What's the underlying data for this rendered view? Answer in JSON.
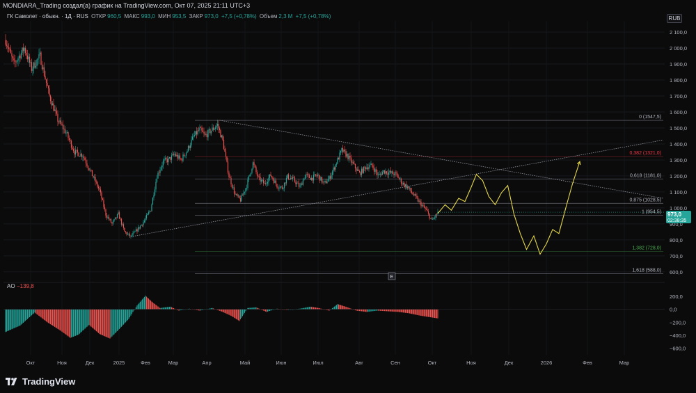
{
  "header": {
    "title": "MONDIARA_Trading создал(а) график на TradingView.com, Окт 07, 2025 21:11 UTC+3"
  },
  "legend": {
    "symbol": "ГК Самолет · обыкн. · 1Д · RUS",
    "open_label": "ОТКР",
    "open": "960,5",
    "high_label": "МАКС",
    "high": "993,0",
    "low_label": "МИН",
    "low": "953,5",
    "close_label": "ЗАКР",
    "close": "973,0",
    "change": "+7,5 (+0,78%)",
    "volume_label": "Объем",
    "volume": "2,3 M",
    "volume_change": "+7,5 (+0,78%)"
  },
  "currency_button": "RUB",
  "price_badge": {
    "price": "973,0",
    "timer": "02:38:35"
  },
  "event_marker": "E",
  "ao": {
    "label": "AO",
    "value": "−139,8"
  },
  "footer": {
    "brand": "TradingView"
  },
  "colors": {
    "background": "#0b0b0c",
    "up": "#26a69a",
    "down": "#ef5350",
    "projection": "#e6d84a",
    "fib_red": "#f23645",
    "fib_green": "#4caf50",
    "trendline": "#9598a1"
  },
  "chart_data": [
    {
      "type": "candlestick",
      "symbol": "ГК Самолет",
      "ylim": [
        560,
        2170
      ],
      "y_ticks": [
        "2 100,0",
        "2 000,0",
        "1 900,0",
        "1 800,0",
        "1 700,0",
        "1 600,0",
        "1 500,0",
        "1 400,0",
        "1 300,0",
        "1 200,0",
        "1 100,0",
        "1 000,0",
        "900,0",
        "800,0",
        "700,0",
        "600,0"
      ],
      "x_ticks": [
        "Окт",
        "Ноя",
        "Дек",
        "2025",
        "Фев",
        "Мар",
        "Апр",
        "Май",
        "Июн",
        "Июл",
        "Авг",
        "Сен",
        "Окт",
        "Ноя",
        "Дек",
        "2026",
        "Фев",
        "Мар"
      ],
      "anchors": [
        [
          0,
          2050
        ],
        [
          8,
          1900
        ],
        [
          18,
          2000
        ],
        [
          25,
          1870
        ],
        [
          33,
          1950
        ],
        [
          42,
          1700
        ],
        [
          50,
          1550
        ],
        [
          58,
          1470
        ],
        [
          66,
          1350
        ],
        [
          74,
          1330
        ],
        [
          82,
          1220
        ],
        [
          90,
          1110
        ],
        [
          96,
          960
        ],
        [
          102,
          900
        ],
        [
          108,
          960
        ],
        [
          114,
          850
        ],
        [
          120,
          820
        ],
        [
          127,
          870
        ],
        [
          133,
          920
        ],
        [
          139,
          990
        ],
        [
          145,
          1200
        ],
        [
          151,
          1290
        ],
        [
          156,
          1300
        ],
        [
          162,
          1335
        ],
        [
          168,
          1300
        ],
        [
          174,
          1360
        ],
        [
          180,
          1445
        ],
        [
          186,
          1490
        ],
        [
          191,
          1450
        ],
        [
          197,
          1485
        ],
        [
          203,
          1520
        ],
        [
          208,
          1420
        ],
        [
          214,
          1200
        ],
        [
          220,
          1080
        ],
        [
          225,
          1050
        ],
        [
          231,
          1140
        ],
        [
          237,
          1280
        ],
        [
          242,
          1185
        ],
        [
          248,
          1150
        ],
        [
          254,
          1205
        ],
        [
          260,
          1140
        ],
        [
          265,
          1125
        ],
        [
          270,
          1195
        ],
        [
          276,
          1175
        ],
        [
          282,
          1130
        ],
        [
          287,
          1205
        ],
        [
          293,
          1185
        ],
        [
          299,
          1205
        ],
        [
          305,
          1150
        ],
        [
          310,
          1185
        ],
        [
          316,
          1270
        ],
        [
          322,
          1360
        ],
        [
          327,
          1330
        ],
        [
          333,
          1270
        ],
        [
          339,
          1215
        ],
        [
          345,
          1255
        ],
        [
          351,
          1265
        ],
        [
          357,
          1200
        ],
        [
          362,
          1230
        ],
        [
          368,
          1220
        ],
        [
          374,
          1210
        ],
        [
          380,
          1155
        ],
        [
          385,
          1130
        ],
        [
          391,
          1080
        ],
        [
          397,
          1030
        ],
        [
          403,
          985
        ],
        [
          408,
          920
        ],
        [
          414,
          965
        ]
      ],
      "last": {
        "open": 960.5,
        "high": 993.0,
        "low": 953.5,
        "close": 973.0
      }
    },
    {
      "type": "line",
      "name": "projection",
      "points": [
        [
          414,
          965
        ],
        [
          421,
          1020
        ],
        [
          427,
          985
        ],
        [
          434,
          1060
        ],
        [
          440,
          1040
        ],
        [
          446,
          1130
        ],
        [
          451,
          1210
        ],
        [
          457,
          1170
        ],
        [
          463,
          1070
        ],
        [
          469,
          1020
        ],
        [
          475,
          1095
        ],
        [
          481,
          1140
        ],
        [
          487,
          960
        ],
        [
          493,
          840
        ],
        [
          499,
          740
        ],
        [
          506,
          825
        ],
        [
          512,
          710
        ],
        [
          518,
          775
        ],
        [
          524,
          865
        ],
        [
          530,
          840
        ],
        [
          537,
          1010
        ],
        [
          543,
          1150
        ],
        [
          550,
          1290
        ]
      ]
    },
    {
      "type": "fibonacci",
      "levels": [
        {
          "ratio": "0",
          "price": 1547.5,
          "label": "0 (1547,5)"
        },
        {
          "ratio": "0.382",
          "price": 1321.0,
          "label": "0,382 (1321,0)"
        },
        {
          "ratio": "0.618",
          "price": 1181.0,
          "label": "0,618 (1181,0)"
        },
        {
          "ratio": "0.875",
          "price": 1028.5,
          "label": "0,875 (1028,5)"
        },
        {
          "ratio": "1",
          "price": 954.5,
          "label": "1 (954,5)"
        },
        {
          "ratio": "1.382",
          "price": 728.0,
          "label": "1,382 (728,0)"
        },
        {
          "ratio": "1.618",
          "price": 588.0,
          "label": "1,618 (588,0)"
        }
      ]
    },
    {
      "type": "line",
      "name": "trendlines",
      "lines": [
        {
          "from": [
            120,
            820
          ],
          "to": [
            630,
            1425
          ]
        },
        {
          "from": [
            205,
            1548
          ],
          "to": [
            630,
            1060
          ]
        }
      ]
    },
    {
      "type": "bar",
      "name": "AO",
      "value": -139.8,
      "ylim": [
        -700,
        350
      ],
      "y_ticks": [
        "200,0",
        "0,0",
        "−200,0",
        "−400,0",
        "−600,0"
      ]
    }
  ]
}
